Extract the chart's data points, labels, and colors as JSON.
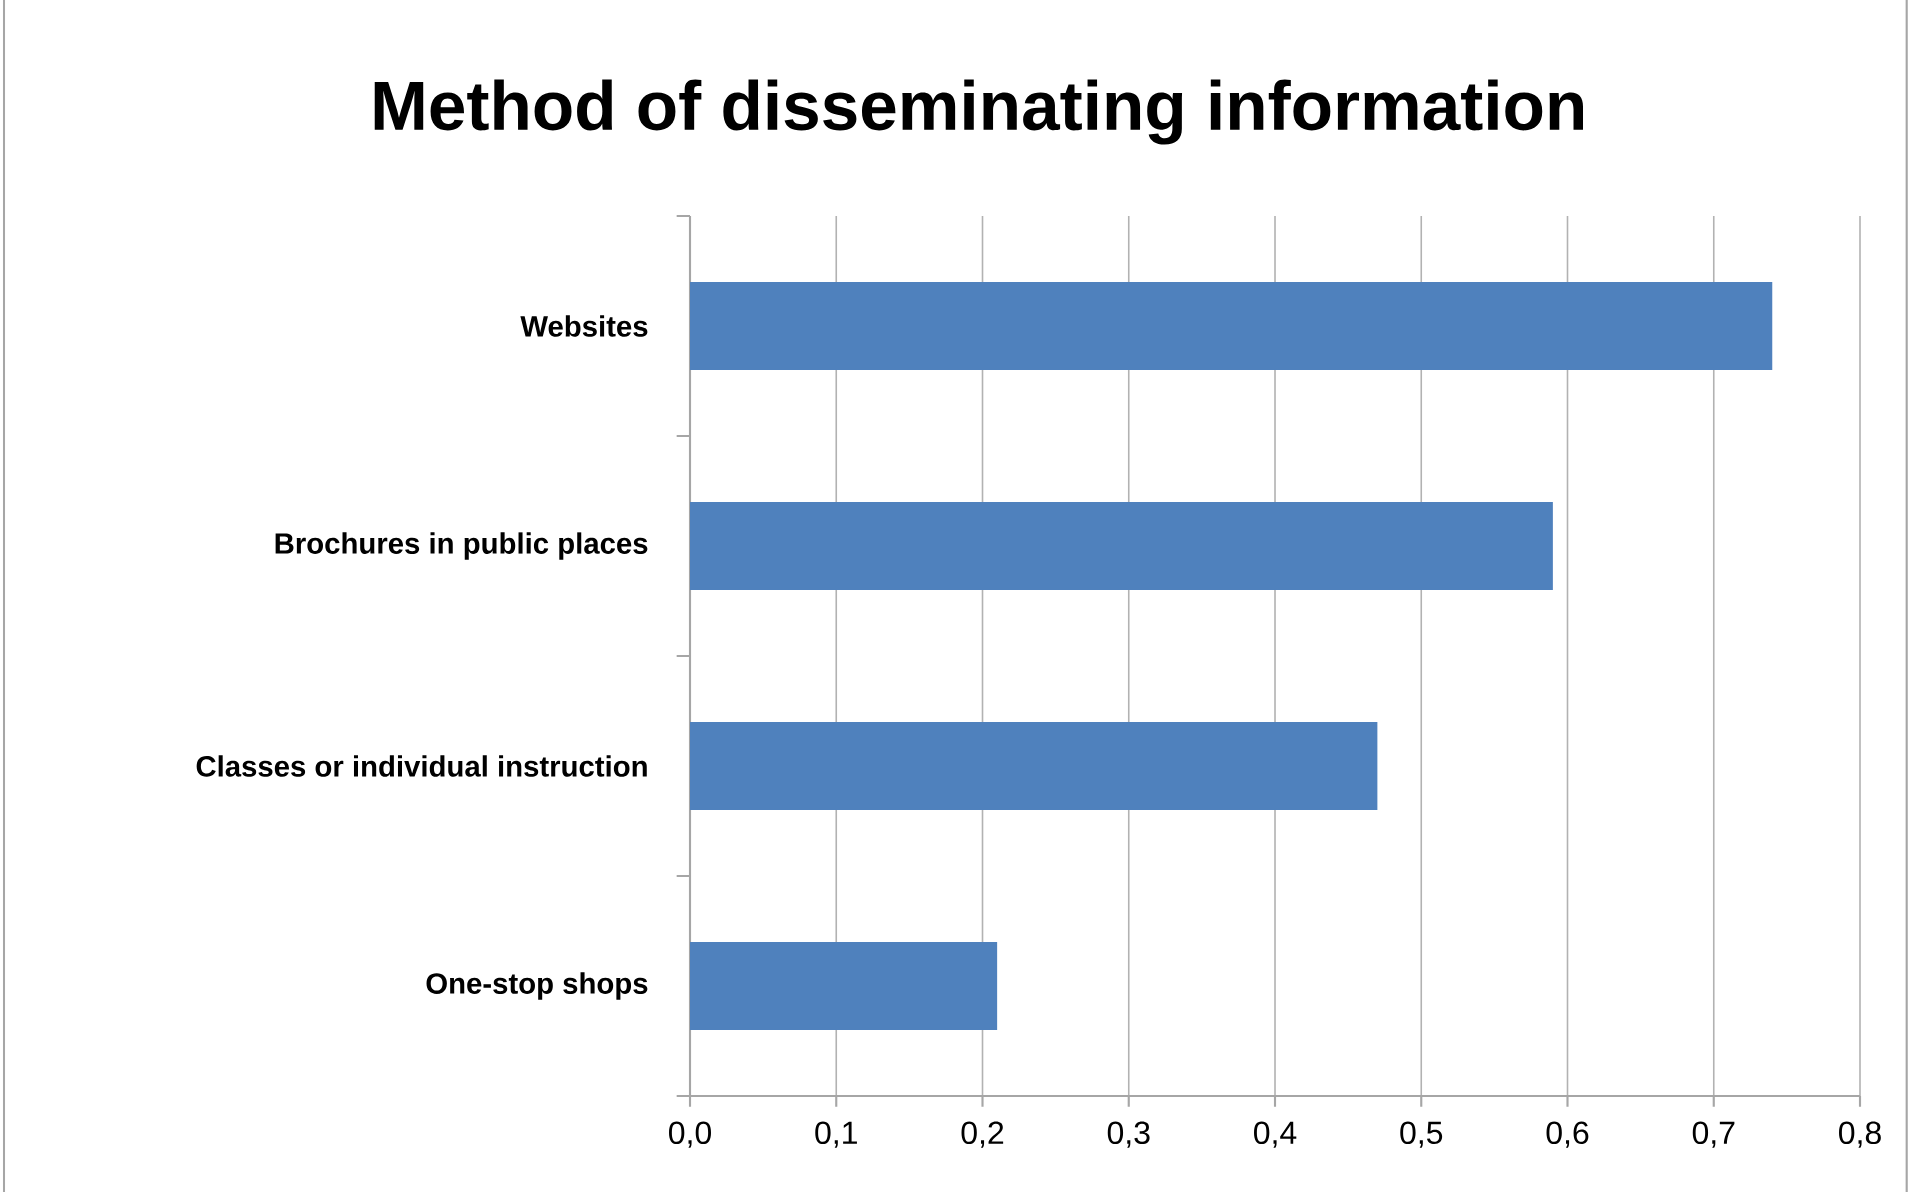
{
  "chart_data": {
    "type": "bar",
    "orientation": "horizontal",
    "title": "Method of disseminating information",
    "categories": [
      "Websites",
      "Brochures in public places",
      "Classes or individual instruction",
      "One-stop shops"
    ],
    "values": [
      0.74,
      0.59,
      0.47,
      0.21
    ],
    "color": "#4f81bd",
    "xlim": [
      0,
      0.8
    ],
    "xticks": [
      {
        "value": 0,
        "label": "0,0"
      },
      {
        "value": 0.1,
        "label": "0,1"
      },
      {
        "value": 0.2,
        "label": "0,2"
      },
      {
        "value": 0.3,
        "label": "0,3"
      },
      {
        "value": 0.4,
        "label": "0,4"
      },
      {
        "value": 0.5,
        "label": "0,5"
      },
      {
        "value": 0.6,
        "label": "0,6"
      },
      {
        "value": 0.7,
        "label": "0,7"
      },
      {
        "value": 0.8,
        "label": "0,8"
      }
    ],
    "grid": "x"
  }
}
